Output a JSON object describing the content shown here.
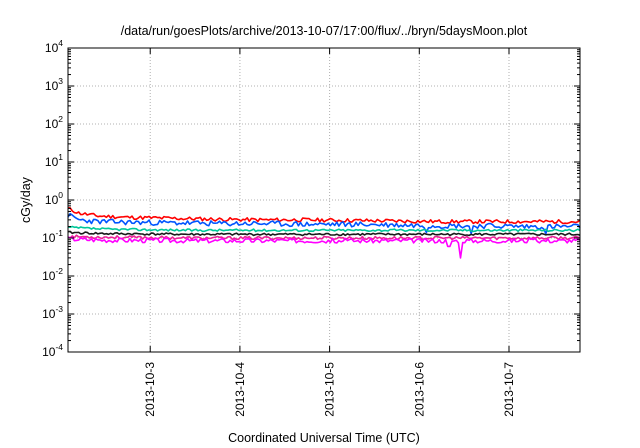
{
  "chart_data": {
    "type": "line",
    "title": "/data/run/goesPlots/archive/2013-10-07/17:00/flux/../bryn/5daysMoon.plot",
    "xlabel": "Coordinated Universal Time (UTC)",
    "ylabel": "cGy/day",
    "yscale": "log",
    "ylim": [
      0.0001,
      10000
    ],
    "xlim": [
      "2013-10-02 02:00",
      "2013-10-07 19:00"
    ],
    "grid": true,
    "legend": "none",
    "y_ticks": [
      {
        "value": 0.0001,
        "base": "10",
        "exp": "-4"
      },
      {
        "value": 0.001,
        "base": "10",
        "exp": "-3"
      },
      {
        "value": 0.01,
        "base": "10",
        "exp": "-2"
      },
      {
        "value": 0.1,
        "base": "10",
        "exp": "-1"
      },
      {
        "value": 1,
        "base": "10",
        "exp": "0"
      },
      {
        "value": 10,
        "base": "10",
        "exp": "1"
      },
      {
        "value": 100,
        "base": "10",
        "exp": "2"
      },
      {
        "value": 1000,
        "base": "10",
        "exp": "3"
      },
      {
        "value": 10000,
        "base": "10",
        "exp": "4"
      }
    ],
    "x_ticks": [
      "2013-10-3",
      "2013-10-4",
      "2013-10-5",
      "2013-10-6",
      "2013-10-7"
    ],
    "series": [
      {
        "color": "#ff0000",
        "noise": 0.05,
        "seed": 11,
        "x": [
          "2013-10-02 02:00",
          "2013-10-02 05:00",
          "2013-10-02 10:00",
          "2013-10-02 18:00",
          "2013-10-03 06:00",
          "2013-10-03 18:00",
          "2013-10-04 06:00",
          "2013-10-04 18:00",
          "2013-10-05 06:00",
          "2013-10-05 18:00",
          "2013-10-06 06:00",
          "2013-10-06 18:00",
          "2013-10-07 06:00",
          "2013-10-07 19:00"
        ],
        "y": [
          0.6,
          0.45,
          0.38,
          0.35,
          0.33,
          0.31,
          0.3,
          0.3,
          0.29,
          0.28,
          0.27,
          0.27,
          0.27,
          0.27
        ]
      },
      {
        "color": "#0055ff",
        "noise": 0.07,
        "seed": 23,
        "x": [
          "2013-10-02 02:00",
          "2013-10-02 05:00",
          "2013-10-02 10:00",
          "2013-10-02 18:00",
          "2013-10-03 06:00",
          "2013-10-03 18:00",
          "2013-10-04 06:00",
          "2013-10-04 18:00",
          "2013-10-05 06:00",
          "2013-10-05 18:00",
          "2013-10-06 06:00",
          "2013-10-06 18:00",
          "2013-10-07 06:00",
          "2013-10-07 19:00"
        ],
        "y": [
          0.4,
          0.3,
          0.27,
          0.26,
          0.25,
          0.24,
          0.24,
          0.23,
          0.23,
          0.22,
          0.21,
          0.21,
          0.2,
          0.2
        ],
        "dips": [
          {
            "x": "2013-10-06 02:00",
            "y": 0.14
          },
          {
            "x": "2013-10-06 14:00",
            "y": 0.13
          },
          {
            "x": "2013-10-07 10:00",
            "y": 0.13
          }
        ]
      },
      {
        "color": "#00c89a",
        "noise": 0.03,
        "seed": 37,
        "x": [
          "2013-10-02 02:00",
          "2013-10-02 12:00",
          "2013-10-03 12:00",
          "2013-10-04 12:00",
          "2013-10-05 12:00",
          "2013-10-06 12:00",
          "2013-10-07 19:00"
        ],
        "y": [
          0.19,
          0.17,
          0.16,
          0.16,
          0.16,
          0.16,
          0.16
        ]
      },
      {
        "color": "#1a1a1a",
        "noise": 0.03,
        "seed": 41,
        "x": [
          "2013-10-02 02:00",
          "2013-10-02 12:00",
          "2013-10-03 12:00",
          "2013-10-04 12:00",
          "2013-10-05 12:00",
          "2013-10-06 12:00",
          "2013-10-07 19:00"
        ],
        "y": [
          0.14,
          0.13,
          0.125,
          0.125,
          0.125,
          0.125,
          0.125
        ]
      },
      {
        "color": "#ee2299",
        "noise": 0.04,
        "seed": 53,
        "x": [
          "2013-10-02 02:00",
          "2013-10-02 12:00",
          "2013-10-03 12:00",
          "2013-10-04 12:00",
          "2013-10-05 12:00",
          "2013-10-06 12:00",
          "2013-10-07 19:00"
        ],
        "y": [
          0.11,
          0.105,
          0.1,
          0.1,
          0.1,
          0.1,
          0.1
        ]
      },
      {
        "color": "#ff00ff",
        "noise": 0.06,
        "seed": 67,
        "x": [
          "2013-10-02 02:00",
          "2013-10-02 12:00",
          "2013-10-03 12:00",
          "2013-10-04 12:00",
          "2013-10-05 12:00",
          "2013-10-06 12:00",
          "2013-10-07 19:00"
        ],
        "y": [
          0.095,
          0.088,
          0.085,
          0.085,
          0.085,
          0.085,
          0.085
        ],
        "dips": [
          {
            "x": "2013-10-06 11:00",
            "y": 0.03
          },
          {
            "x": "2013-10-06 08:00",
            "y": 0.06
          }
        ]
      }
    ]
  }
}
